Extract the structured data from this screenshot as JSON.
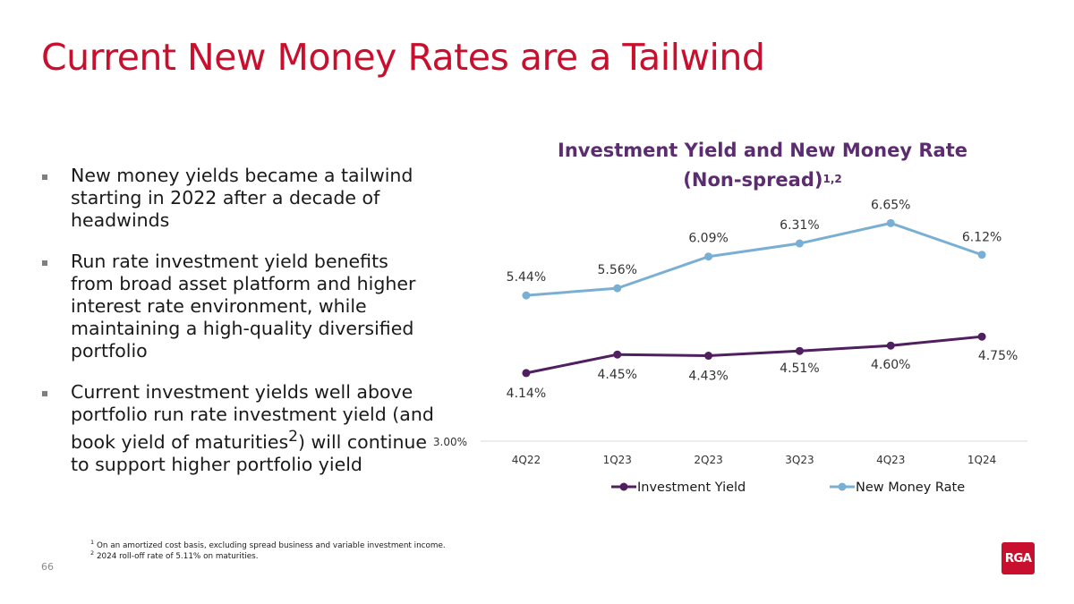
{
  "slide": {
    "title": "Current New Money Rates are a Tailwind",
    "page_number": "66",
    "logo_text": "RGA",
    "bullets": [
      "New money yields became a tailwind starting in 2022 after a decade of headwinds",
      "Run rate investment yield benefits from broad asset platform and higher interest rate environment, while maintaining a high-quality diversified portfolio",
      {
        "before": "Current investment yields well above portfolio run rate investment yield (and book yield of maturities",
        "sup": "2",
        "after": ") will continue to support higher portfolio yield"
      }
    ],
    "footnotes": [
      {
        "marker": "1",
        "text": "On an amortized cost basis, excluding spread business and variable investment income."
      },
      {
        "marker": "2",
        "text": "2024 roll-off rate of 5.11% on maturities."
      }
    ]
  },
  "chart_data": {
    "type": "line",
    "title_line1": "Investment Yield and New Money Rate",
    "title_line2": "(Non-spread)",
    "title_sup": "1,2",
    "categories": [
      "4Q22",
      "1Q23",
      "2Q23",
      "3Q23",
      "4Q23",
      "1Q24"
    ],
    "y_axis_label": "3.00%",
    "ylim": [
      3.0,
      7.0
    ],
    "grid": false,
    "legend_position": "bottom",
    "series": [
      {
        "name": "Investment Yield",
        "color": "#4f1f5f",
        "values": [
          4.14,
          4.45,
          4.43,
          4.51,
          4.6,
          4.75
        ],
        "labels": [
          "4.14%",
          "4.45%",
          "4.43%",
          "4.51%",
          "4.60%",
          "4.75%"
        ]
      },
      {
        "name": "New Money Rate",
        "color": "#7aafd4",
        "values": [
          5.44,
          5.56,
          6.09,
          6.31,
          6.65,
          6.12
        ],
        "labels": [
          "5.44%",
          "5.56%",
          "6.09%",
          "6.31%",
          "6.65%",
          "6.12%"
        ]
      }
    ]
  }
}
